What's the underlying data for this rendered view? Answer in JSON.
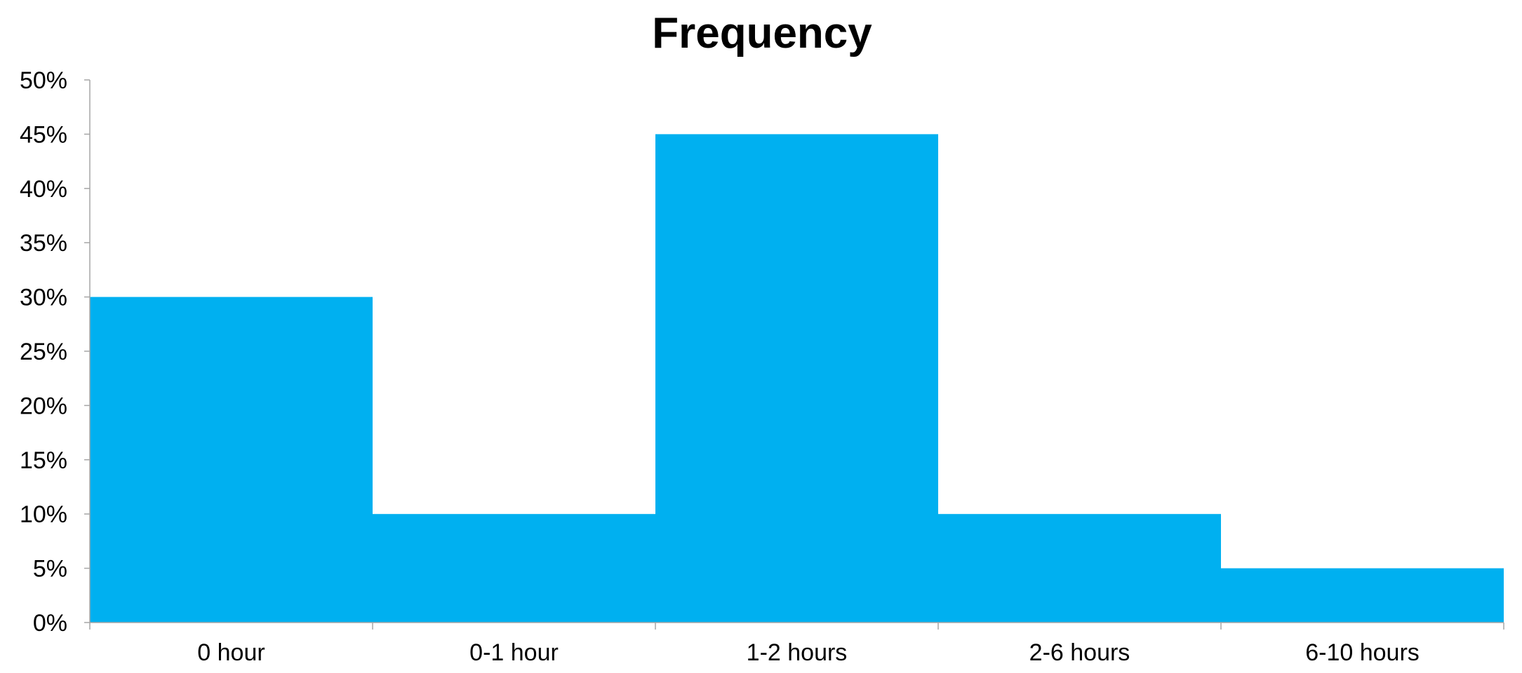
{
  "chart_data": {
    "type": "bar",
    "title": "Frequency",
    "xlabel": "",
    "ylabel": "",
    "categories": [
      "0 hour",
      "0-1 hour",
      "1-2 hours",
      "2-6 hours",
      "6-10 hours"
    ],
    "values": [
      30,
      10,
      45,
      10,
      5
    ],
    "value_unit": "percent",
    "ylim": [
      0,
      50
    ],
    "ytick_step": 5,
    "yticks": [
      "0%",
      "5%",
      "10%",
      "15%",
      "20%",
      "25%",
      "30%",
      "35%",
      "40%",
      "45%",
      "50%"
    ],
    "bar_gap": 0,
    "grid": false,
    "legend": "none",
    "colors": {
      "bar": "#00B0F0",
      "axis": "#A6A6A6",
      "text": "#000000"
    }
  }
}
